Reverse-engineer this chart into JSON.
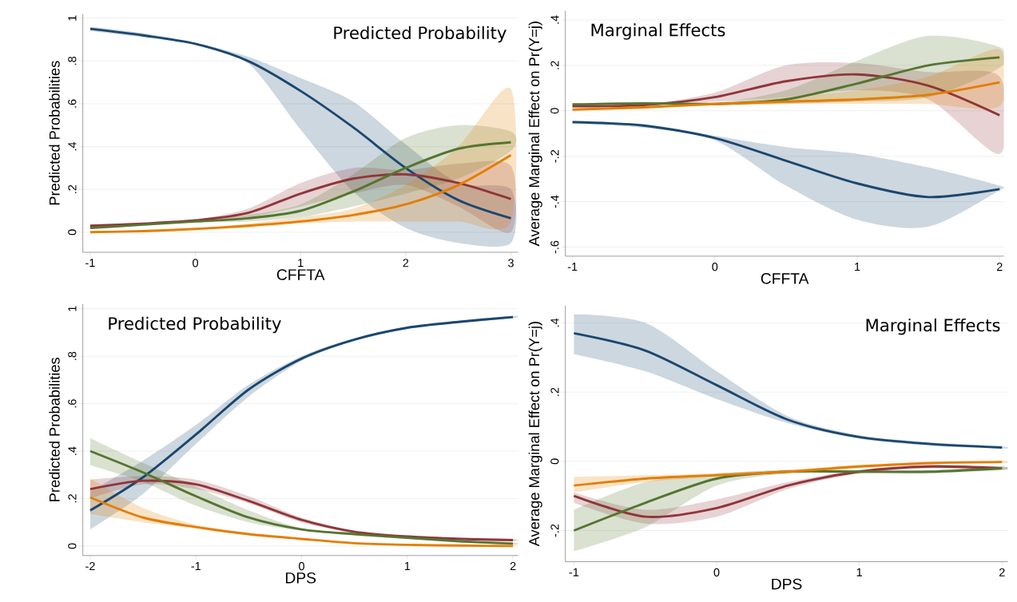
{
  "chart_data": [
    {
      "type": "line",
      "title": "Predicted Probability",
      "xlabel": "CFFTA",
      "ylabel": "Predicted Probabilities",
      "grid": "y",
      "xlim": [
        -1.07,
        3.07
      ],
      "ylim": [
        -0.094,
        1.02
      ],
      "xticks": [
        -1,
        0,
        1,
        2,
        3
      ],
      "yticks": [
        {
          "value": 0,
          "label": "0"
        },
        {
          "value": 0.2,
          "label": ".2"
        },
        {
          "value": 0.4,
          "label": ".4"
        },
        {
          "value": 0.6,
          "label": ".6"
        },
        {
          "value": 0.8,
          "label": ".8"
        },
        {
          "value": 1,
          "label": "1"
        }
      ],
      "x": [
        -1,
        -0.5,
        0,
        0.5,
        1,
        1.5,
        2,
        2.5,
        3
      ],
      "series": [
        {
          "color": "#1a476f",
          "values": [
            0.95,
            0.92,
            0.88,
            0.8,
            0.66,
            0.49,
            0.3,
            0.15,
            0.065
          ],
          "lower": [
            0.94,
            0.91,
            0.875,
            0.79,
            0.48,
            0.19,
            0.02,
            -0.05,
            -0.05
          ],
          "upper": [
            0.96,
            0.93,
            0.885,
            0.82,
            0.72,
            0.61,
            0.41,
            0.23,
            0.2
          ]
        },
        {
          "color": "#90353b",
          "values": [
            0.03,
            0.04,
            0.055,
            0.09,
            0.18,
            0.25,
            0.27,
            0.23,
            0.155
          ],
          "lower": [
            0.025,
            0.035,
            0.05,
            0.07,
            0.12,
            0.18,
            0.22,
            0.12,
            0.0
          ],
          "upper": [
            0.035,
            0.045,
            0.06,
            0.11,
            0.23,
            0.3,
            0.29,
            0.32,
            0.31
          ]
        },
        {
          "color": "#55752f",
          "values": [
            0.02,
            0.035,
            0.05,
            0.065,
            0.1,
            0.19,
            0.3,
            0.39,
            0.42
          ],
          "lower": [
            0.015,
            0.03,
            0.045,
            0.05,
            0.07,
            0.12,
            0.18,
            0.25,
            0.38
          ],
          "upper": [
            0.025,
            0.04,
            0.055,
            0.08,
            0.13,
            0.27,
            0.44,
            0.5,
            0.47
          ]
        },
        {
          "color": "#e37e00",
          "values": [
            0.0,
            0.005,
            0.015,
            0.03,
            0.05,
            0.08,
            0.13,
            0.22,
            0.36
          ],
          "lower": [
            0.0,
            0.003,
            0.012,
            0.02,
            0.04,
            0.05,
            0.05,
            0.05,
            0.05
          ],
          "upper": [
            0.002,
            0.008,
            0.018,
            0.04,
            0.07,
            0.11,
            0.22,
            0.4,
            0.67
          ]
        }
      ]
    },
    {
      "type": "line",
      "title": "Marginal Effects",
      "xlabel": "CFFTA",
      "ylabel": "Average Marginal Effect on Pr(Y=j)",
      "grid": "y",
      "xlim": [
        -1.05,
        2.03
      ],
      "ylim": [
        -0.64,
        0.44
      ],
      "xticks": [
        -1,
        0,
        1,
        2
      ],
      "yticks": [
        {
          "value": -0.6,
          "label": "-.6"
        },
        {
          "value": -0.4,
          "label": "-.4"
        },
        {
          "value": -0.2,
          "label": "-.2"
        },
        {
          "value": 0,
          "label": "0"
        },
        {
          "value": 0.2,
          "label": ".2"
        },
        {
          "value": 0.4,
          "label": ".4"
        }
      ],
      "x": [
        -1,
        -0.5,
        0,
        0.5,
        1,
        1.5,
        2
      ],
      "series": [
        {
          "color": "#1a476f",
          "values": [
            -0.05,
            -0.065,
            -0.12,
            -0.22,
            -0.32,
            -0.38,
            -0.345
          ],
          "lower": [
            -0.055,
            -0.075,
            -0.13,
            -0.33,
            -0.48,
            -0.51,
            -0.35
          ],
          "upper": [
            -0.045,
            -0.06,
            -0.11,
            -0.16,
            -0.19,
            -0.25,
            -0.33
          ]
        },
        {
          "color": "#90353b",
          "values": [
            0.02,
            0.025,
            0.06,
            0.13,
            0.16,
            0.11,
            -0.02
          ],
          "lower": [
            0.015,
            0.02,
            0.04,
            0.06,
            0.09,
            0.05,
            -0.19
          ],
          "upper": [
            0.025,
            0.03,
            0.08,
            0.2,
            0.21,
            0.17,
            0.15
          ]
        },
        {
          "color": "#55752f",
          "values": [
            0.028,
            0.033,
            0.03,
            0.05,
            0.12,
            0.2,
            0.235
          ],
          "lower": [
            0.023,
            0.028,
            0.025,
            0.03,
            0.04,
            0.06,
            0.19
          ],
          "upper": [
            0.033,
            0.038,
            0.035,
            0.09,
            0.22,
            0.33,
            0.28
          ]
        },
        {
          "color": "#e37e00",
          "values": [
            0.005,
            0.015,
            0.03,
            0.04,
            0.05,
            0.07,
            0.125
          ],
          "lower": [
            0.0,
            0.01,
            0.025,
            0.03,
            0.03,
            0.03,
            0.02
          ],
          "upper": [
            0.01,
            0.02,
            0.035,
            0.06,
            0.09,
            0.15,
            0.27
          ]
        }
      ]
    },
    {
      "type": "line",
      "title": "Predicted Probability",
      "xlabel": "DPS",
      "ylabel": "Predicted Probabilities",
      "grid": "y",
      "xlim": [
        -2.07,
        2.05
      ],
      "ylim": [
        -0.04,
        1.02
      ],
      "xticks": [
        -2,
        -1,
        0,
        1,
        2
      ],
      "yticks": [
        {
          "value": 0,
          "label": "0"
        },
        {
          "value": 0.2,
          "label": ".2"
        },
        {
          "value": 0.4,
          "label": ".4"
        },
        {
          "value": 0.6,
          "label": ".6"
        },
        {
          "value": 0.8,
          "label": ".8"
        },
        {
          "value": 1,
          "label": "1"
        }
      ],
      "x": [
        -2,
        -1.5,
        -1,
        -0.5,
        0,
        0.5,
        1,
        1.5,
        2
      ],
      "series": [
        {
          "color": "#1a476f",
          "values": [
            0.15,
            0.29,
            0.47,
            0.66,
            0.79,
            0.87,
            0.92,
            0.945,
            0.965
          ],
          "lower": [
            0.07,
            0.22,
            0.43,
            0.63,
            0.78,
            0.865,
            0.915,
            0.94,
            0.96
          ],
          "upper": [
            0.23,
            0.36,
            0.51,
            0.68,
            0.8,
            0.875,
            0.925,
            0.95,
            0.97
          ]
        },
        {
          "color": "#90353b",
          "values": [
            0.24,
            0.275,
            0.26,
            0.19,
            0.11,
            0.06,
            0.04,
            0.03,
            0.025
          ],
          "lower": [
            0.2,
            0.26,
            0.24,
            0.18,
            0.1,
            0.055,
            0.035,
            0.025,
            0.02
          ],
          "upper": [
            0.28,
            0.295,
            0.28,
            0.21,
            0.12,
            0.065,
            0.045,
            0.035,
            0.03
          ]
        },
        {
          "color": "#55752f",
          "values": [
            0.4,
            0.31,
            0.21,
            0.12,
            0.07,
            0.05,
            0.035,
            0.02,
            0.01
          ],
          "lower": [
            0.34,
            0.27,
            0.17,
            0.1,
            0.065,
            0.045,
            0.03,
            0.015,
            0.005
          ],
          "upper": [
            0.455,
            0.35,
            0.25,
            0.15,
            0.075,
            0.055,
            0.04,
            0.025,
            0.015
          ]
        },
        {
          "color": "#e37e00",
          "values": [
            0.205,
            0.12,
            0.08,
            0.05,
            0.03,
            0.012,
            0.005,
            0.002,
            0.0
          ],
          "lower": [
            0.135,
            0.1,
            0.075,
            0.045,
            0.027,
            0.01,
            0.003,
            0.001,
            0.0
          ],
          "upper": [
            0.285,
            0.16,
            0.09,
            0.055,
            0.033,
            0.014,
            0.007,
            0.003,
            0.002
          ]
        }
      ]
    },
    {
      "type": "line",
      "title": "Marginal Effects",
      "xlabel": "DPS",
      "ylabel": "Average Marginal Effect on Pr(Y=j)",
      "grid": "y",
      "xlim": [
        -1.06,
        2.04
      ],
      "ylim": [
        -0.29,
        0.45
      ],
      "xticks": [
        -1,
        0,
        1,
        2
      ],
      "yticks": [
        {
          "value": -0.2,
          "label": "-.2"
        },
        {
          "value": 0,
          "label": "0"
        },
        {
          "value": 0.2,
          "label": ".2"
        },
        {
          "value": 0.4,
          "label": ".4"
        }
      ],
      "x": [
        -1,
        -0.5,
        0,
        0.5,
        1,
        1.5,
        2
      ],
      "series": [
        {
          "color": "#1a476f",
          "values": [
            0.37,
            0.32,
            0.22,
            0.12,
            0.07,
            0.05,
            0.04
          ],
          "lower": [
            0.31,
            0.26,
            0.18,
            0.11,
            0.065,
            0.045,
            0.037
          ],
          "upper": [
            0.425,
            0.4,
            0.26,
            0.13,
            0.075,
            0.055,
            0.043
          ]
        },
        {
          "color": "#90353b",
          "values": [
            -0.1,
            -0.16,
            -0.135,
            -0.07,
            -0.03,
            -0.015,
            -0.02
          ],
          "lower": [
            -0.12,
            -0.18,
            -0.16,
            -0.08,
            -0.035,
            -0.02,
            -0.025
          ],
          "upper": [
            -0.09,
            -0.14,
            -0.11,
            -0.06,
            -0.025,
            -0.01,
            -0.015
          ]
        },
        {
          "color": "#55752f",
          "values": [
            -0.2,
            -0.12,
            -0.05,
            -0.03,
            -0.03,
            -0.03,
            -0.02
          ],
          "lower": [
            -0.26,
            -0.19,
            -0.07,
            -0.035,
            -0.035,
            -0.035,
            -0.025
          ],
          "upper": [
            -0.14,
            -0.06,
            -0.035,
            -0.025,
            -0.025,
            -0.025,
            -0.015
          ]
        },
        {
          "color": "#e37e00",
          "values": [
            -0.07,
            -0.05,
            -0.04,
            -0.03,
            -0.015,
            -0.005,
            -0.002
          ],
          "lower": [
            -0.09,
            -0.06,
            -0.045,
            -0.035,
            -0.02,
            -0.008,
            -0.005
          ],
          "upper": [
            -0.045,
            -0.04,
            -0.035,
            -0.025,
            -0.01,
            -0.002,
            0.001
          ]
        }
      ]
    }
  ]
}
